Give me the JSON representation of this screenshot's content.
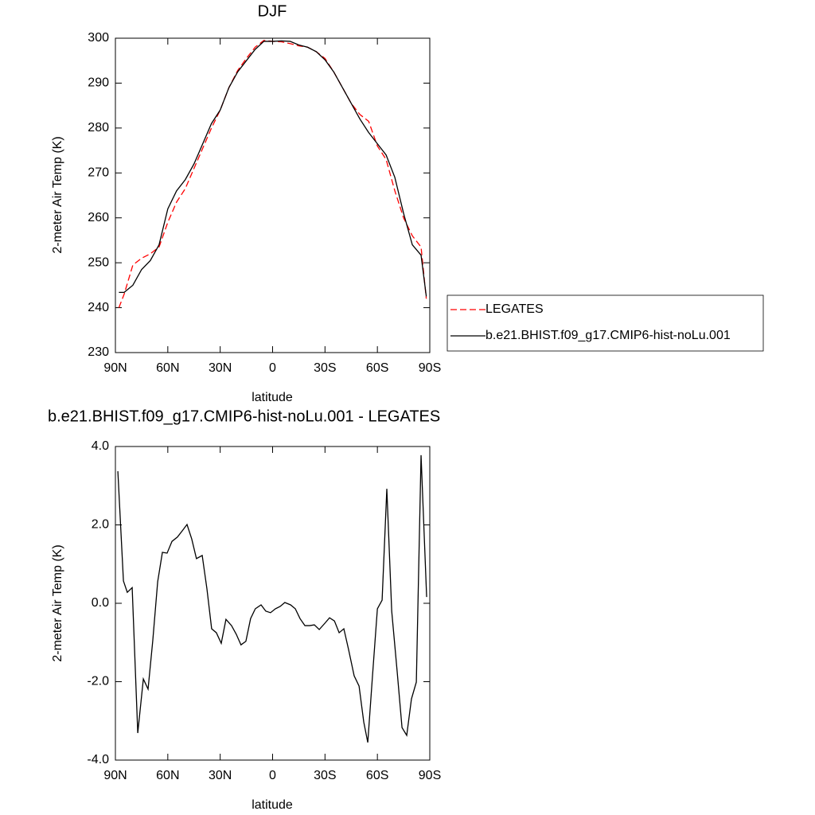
{
  "chart_data": [
    {
      "type": "line",
      "title": "DJF",
      "xlabel": "latitude",
      "ylabel": "2-meter Air Temp (K)",
      "x": [
        88,
        85,
        80,
        75,
        70,
        65,
        60,
        55,
        50,
        45,
        40,
        35,
        30,
        25,
        20,
        15,
        10,
        5,
        0,
        -5,
        -10,
        -15,
        -20,
        -25,
        -30,
        -35,
        -40,
        -45,
        -50,
        -55,
        -60,
        -65,
        -70,
        -75,
        -80,
        -85,
        -88
      ],
      "series": [
        {
          "name": "LEGATES",
          "color": "#ff0000",
          "style": "dashed",
          "values": [
            240,
            243,
            249.5,
            251,
            252,
            253.5,
            259,
            263.5,
            266.5,
            271,
            275.5,
            280,
            284,
            289,
            292.8,
            295.5,
            298,
            299.5,
            299.3,
            299.2,
            298.8,
            298.3,
            298,
            297,
            295.5,
            292.5,
            289,
            285.5,
            283,
            281.5,
            276,
            273,
            266,
            260,
            256,
            253.5,
            242
          ]
        },
        {
          "name": "b.e21.BHIST.f09_g17.CMIP6-hist-noLu.001",
          "color": "#000000",
          "style": "solid",
          "values": [
            243.4,
            243.4,
            245,
            248.5,
            250.5,
            254,
            262,
            266,
            268.5,
            272,
            276.5,
            281,
            284,
            289,
            292.5,
            295,
            297.5,
            299.3,
            299.3,
            299.4,
            299.3,
            298.5,
            298,
            297,
            295.2,
            292.5,
            289,
            285.5,
            282,
            279,
            276.5,
            274,
            269,
            261,
            254,
            251.7,
            242.5
          ]
        }
      ],
      "xlim": [
        90,
        -90
      ],
      "xticks": [
        {
          "value": 90,
          "label": "90N"
        },
        {
          "value": 60,
          "label": "60N"
        },
        {
          "value": 30,
          "label": "30N"
        },
        0,
        {
          "value": -30,
          "label": "30S"
        },
        {
          "value": -60,
          "label": "60S"
        },
        {
          "value": -90,
          "label": "90S"
        }
      ],
      "ylim": [
        230,
        300
      ],
      "yticks": [
        230,
        240,
        250,
        260,
        270,
        280,
        290,
        300
      ],
      "legend": "right"
    },
    {
      "type": "line",
      "title": "b.e21.BHIST.f09_g17.CMIP6-hist-noLu.001 - LEGATES",
      "xlabel": "latitude",
      "ylabel": "2-meter Air Temp (K)",
      "x": [
        88.6,
        85.4,
        83.2,
        80.4,
        77.2,
        74,
        71.3,
        68.6,
        65.8,
        63.1,
        60.4,
        57.6,
        54.5,
        51.7,
        49,
        46.3,
        43.6,
        40.3,
        37.6,
        34.9,
        32.2,
        29.4,
        26.7,
        23.5,
        20.8,
        18.1,
        15.3,
        12.6,
        9.9,
        6.6,
        3.9,
        1.2,
        -1.6,
        -4.3,
        -7,
        -10.3,
        -13,
        -15.7,
        -18.5,
        -21.2,
        -23.9,
        -26.7,
        -29.9,
        -32.6,
        -35.4,
        -38.1,
        -40.8,
        -43.5,
        -46.7,
        -49.5,
        -52.2,
        -54.5,
        -57.2,
        -60,
        -62.7,
        -65.4,
        -68.2,
        -71.3,
        -74.1,
        -76.8,
        -79.5,
        -82.3,
        -85,
        -88.2
      ],
      "values": [
        3.37,
        0.57,
        0.28,
        0.4,
        -3.31,
        -1.93,
        -2.19,
        -0.95,
        0.55,
        1.3,
        1.28,
        1.58,
        1.69,
        1.85,
        2.01,
        1.64,
        1.14,
        1.22,
        0.37,
        -0.65,
        -0.75,
        -1.02,
        -0.41,
        -0.57,
        -0.79,
        -1.06,
        -0.97,
        -0.39,
        -0.14,
        -0.04,
        -0.2,
        -0.24,
        -0.14,
        -0.08,
        0.02,
        -0.04,
        -0.14,
        -0.39,
        -0.57,
        -0.57,
        -0.55,
        -0.67,
        -0.51,
        -0.37,
        -0.45,
        -0.75,
        -0.65,
        -1.18,
        -1.85,
        -2.11,
        -3.03,
        -3.55,
        -1.85,
        -0.14,
        0.08,
        2.92,
        -0.2,
        -1.73,
        -3.17,
        -3.37,
        -2.44,
        -2.01,
        3.78,
        0.16
      ],
      "color": "#000000",
      "xlim": [
        90,
        -90
      ],
      "xticks": [
        {
          "value": 90,
          "label": "90N"
        },
        {
          "value": 60,
          "label": "60N"
        },
        {
          "value": 30,
          "label": "30N"
        },
        0,
        {
          "value": -30,
          "label": "30S"
        },
        {
          "value": -60,
          "label": "60S"
        },
        {
          "value": -90,
          "label": "90S"
        }
      ],
      "ylim": [
        -4,
        4
      ],
      "yticks": [
        {
          "value": -4,
          "label": "-4.0"
        },
        {
          "value": -2,
          "label": "-2.0"
        },
        {
          "value": 0,
          "label": "0.0"
        },
        {
          "value": 2,
          "label": "2.0"
        },
        {
          "value": 4,
          "label": "4.0"
        }
      ]
    }
  ]
}
